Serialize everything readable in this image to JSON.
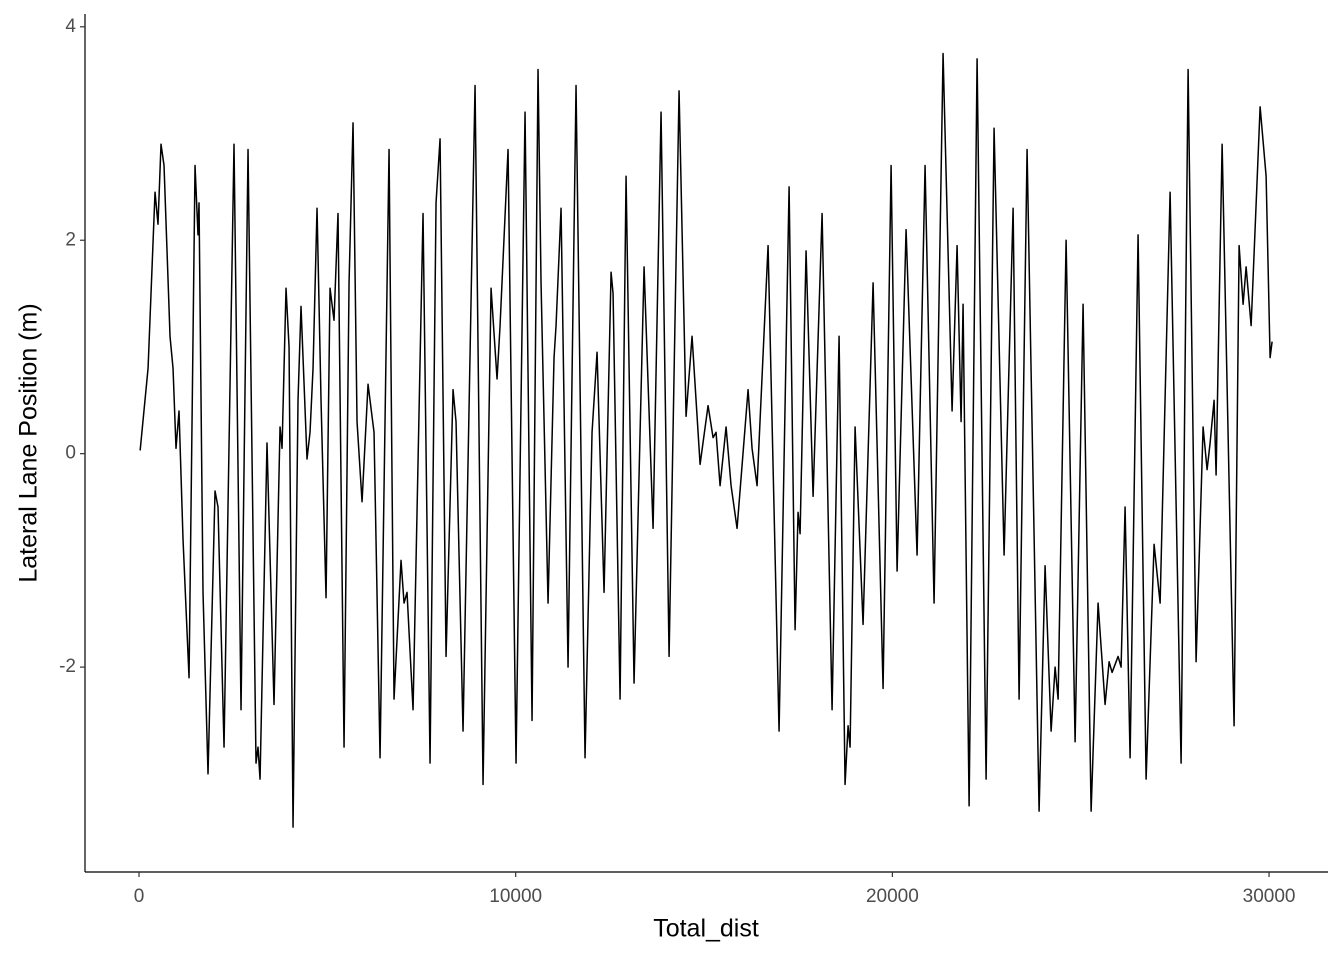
{
  "chart_data": {
    "type": "line",
    "x_label": "Total_dist",
    "y_label": "Lateral Lane Position (m)",
    "xlim": [
      -1434,
      31565
    ],
    "ylim": [
      -3.92,
      4.12
    ],
    "xticks": [
      0,
      10000,
      20000,
      30000
    ],
    "yticks": [
      -2,
      0,
      2,
      4
    ],
    "grid": false,
    "series": [
      {
        "color": "#000000",
        "x": [
          30,
          240,
          425,
          504,
          584,
          664,
          823,
          903,
          982,
          1062,
          1168,
          1328,
          1487,
          1566,
          1593,
          1699,
          1832,
          2018,
          2097,
          2257,
          2522,
          2708,
          2894,
          3106,
          3159,
          3213,
          3398,
          3584,
          3744,
          3797,
          3903,
          3983,
          4089,
          4221,
          4301,
          4460,
          4540,
          4620,
          4726,
          4832,
          4965,
          5071,
          5177,
          5283,
          5443,
          5576,
          5682,
          5788,
          5921,
          6080,
          6239,
          6399,
          6638,
          6770,
          6956,
          7036,
          7115,
          7275,
          7540,
          7726,
          7885,
          7992,
          8151,
          8337,
          8416,
          8602,
          8921,
          9133,
          9346,
          9505,
          9585,
          9797,
          10009,
          10248,
          10434,
          10593,
          10673,
          10859,
          11018,
          11071,
          11204,
          11390,
          11602,
          11841,
          12027,
          12160,
          12346,
          12532,
          12585,
          12771,
          12930,
          13142,
          13408,
          13647,
          13859,
          14072,
          14337,
          14523,
          14682,
          14895,
          15107,
          15240,
          15319,
          15426,
          15585,
          15718,
          15877,
          16169,
          16275,
          16408,
          16700,
          16992,
          17258,
          17417,
          17496,
          17550,
          17709,
          17895,
          18134,
          18399,
          18585,
          18744,
          18824,
          18877,
          19010,
          19222,
          19488,
          19753,
          19966,
          20125,
          20364,
          20656,
          20868,
          21107,
          21346,
          21585,
          21718,
          21824,
          21877,
          22037,
          22249,
          22488,
          22700,
          22966,
          23205,
          23364,
          23576,
          23895,
          24054,
          24214,
          24320,
          24400,
          24612,
          24851,
          25063,
          25276,
          25461,
          25647,
          25754,
          25833,
          25992,
          26072,
          26178,
          26311,
          26523,
          26736,
          26948,
          27108,
          27373,
          27665,
          27851,
          28063,
          28249,
          28355,
          28435,
          28541,
          28594,
          28754,
          29072,
          29205,
          29311,
          29391,
          29524,
          29763,
          29922,
          30028,
          30081
        ],
        "values": [
          0.03,
          0.8,
          2.45,
          2.15,
          2.9,
          2.7,
          1.1,
          0.8,
          0.05,
          0.4,
          -0.8,
          -2.1,
          2.7,
          2.05,
          2.35,
          -1.3,
          -3.0,
          -0.35,
          -0.5,
          -2.75,
          2.9,
          -2.4,
          2.85,
          -2.9,
          -2.75,
          -3.05,
          0.1,
          -2.35,
          0.25,
          0.05,
          1.55,
          1.0,
          -3.5,
          0.5,
          1.38,
          -0.05,
          0.2,
          0.8,
          2.3,
          0.5,
          -1.35,
          1.55,
          1.25,
          2.25,
          -2.75,
          1.6,
          3.1,
          0.3,
          -0.45,
          0.65,
          0.2,
          -2.85,
          2.85,
          -2.3,
          -1.0,
          -1.4,
          -1.3,
          -2.4,
          2.25,
          -2.9,
          2.35,
          2.95,
          -1.9,
          0.6,
          0.3,
          -2.6,
          3.45,
          -3.1,
          1.55,
          0.7,
          1.2,
          2.85,
          -2.9,
          3.2,
          -2.5,
          3.6,
          1.6,
          -1.4,
          0.9,
          1.2,
          2.3,
          -2.0,
          3.45,
          -2.85,
          0.2,
          0.95,
          -1.3,
          1.7,
          1.5,
          -2.3,
          2.6,
          -2.15,
          1.75,
          -0.7,
          3.2,
          -1.9,
          3.4,
          0.35,
          1.1,
          -0.1,
          0.45,
          0.15,
          0.2,
          -0.3,
          0.25,
          -0.3,
          -0.7,
          0.6,
          0.05,
          -0.3,
          1.95,
          -2.6,
          2.5,
          -1.65,
          -0.55,
          -0.75,
          1.9,
          -0.4,
          2.25,
          -2.4,
          1.1,
          -3.1,
          -2.55,
          -2.75,
          0.25,
          -1.6,
          1.6,
          -2.2,
          2.7,
          -1.1,
          2.1,
          -0.95,
          2.7,
          -1.4,
          3.75,
          0.4,
          1.95,
          0.3,
          1.4,
          -3.3,
          3.7,
          -3.05,
          3.05,
          -0.95,
          2.3,
          -2.3,
          2.85,
          -3.35,
          -1.05,
          -2.6,
          -2.0,
          -2.3,
          2.0,
          -2.7,
          1.4,
          -3.35,
          -1.4,
          -2.35,
          -1.95,
          -2.05,
          -1.9,
          -2.0,
          -0.5,
          -2.85,
          2.05,
          -3.05,
          -0.85,
          -1.4,
          2.45,
          -2.9,
          3.6,
          -1.95,
          0.25,
          -0.15,
          0.1,
          0.5,
          -0.2,
          2.9,
          -2.55,
          1.95,
          1.4,
          1.75,
          1.2,
          3.25,
          2.6,
          0.9,
          1.05
        ]
      }
    ]
  }
}
